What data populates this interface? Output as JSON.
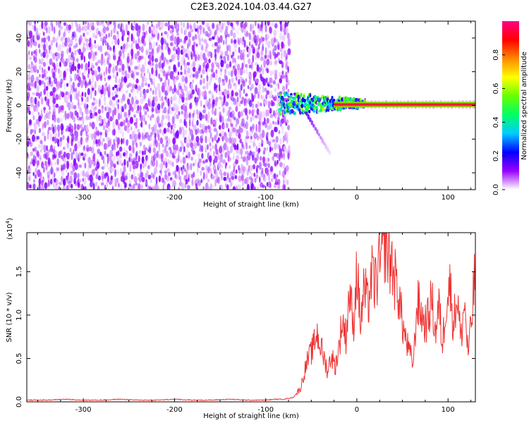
{
  "title": "C2E3.2024.104.03.44.G27",
  "chart_data": [
    {
      "type": "heatmap",
      "xlabel": "Height of straight line (km)",
      "ylabel": "Frequency (Hz)",
      "xlim": [
        -362,
        130
      ],
      "ylim": [
        -50,
        50
      ],
      "xticks": [
        -300,
        -200,
        -100,
        0,
        100
      ],
      "yticks": [
        -40,
        -20,
        0,
        20,
        40
      ],
      "colorbar": {
        "label": "Normalized spectral amplitude",
        "range": [
          0,
          1
        ],
        "ticks": [
          "0.0",
          "0.2",
          "0.4",
          "0.6",
          "0.8"
        ],
        "colors": [
          "#ffffff",
          "#9900ff",
          "#0000ff",
          "#00ccff",
          "#00ff66",
          "#66ff00",
          "#ffff00",
          "#ff8800",
          "#ff0000",
          "#ff0088"
        ]
      },
      "regions": [
        {
          "x_range": [
            -362,
            -75
          ],
          "freq_range": [
            -50,
            50
          ],
          "amplitude": 0.08,
          "pattern": "noise"
        },
        {
          "x_range": [
            -85,
            10
          ],
          "freq_center": 1,
          "amplitude": 0.45,
          "pattern": "scattered signal"
        },
        {
          "x_range": [
            -55,
            -30
          ],
          "freq_range": [
            -28,
            -5
          ],
          "amplitude": 0.1,
          "pattern": "descending tail"
        },
        {
          "x_range": [
            -25,
            130
          ],
          "freq_center": 0.5,
          "amplitude": 1.0,
          "pattern": "carrier line"
        }
      ]
    },
    {
      "type": "line",
      "xlabel": "Height of straight line (km)",
      "ylabel": "SNR (10 * v/v)",
      "y_multiplier_label": "(x10",
      "y_multiplier_exp": "4",
      "y_multiplier_close": ")",
      "xlim": [
        -362,
        130
      ],
      "ylim": [
        0,
        1.95
      ],
      "xticks": [
        -300,
        -200,
        -100,
        0,
        100
      ],
      "yticks": [
        "0.0",
        "0.5",
        "1.0",
        "1.5"
      ],
      "color": "#ee3333",
      "series": [
        {
          "x": [
            -362,
            -340,
            -320,
            -300,
            -280,
            -260,
            -240,
            -220,
            -200,
            -180,
            -160,
            -140,
            -120,
            -100,
            -90,
            -80,
            -70,
            -62,
            -55,
            -48,
            -44,
            -40,
            -36,
            -32,
            -28,
            -24,
            -20,
            -16,
            -12,
            -8,
            -4,
            0,
            4,
            8,
            12,
            16,
            20,
            24,
            28,
            31,
            34,
            38,
            42,
            46,
            50,
            54,
            58,
            62,
            66,
            70,
            74,
            78,
            82,
            86,
            90,
            94,
            98,
            102,
            106,
            110,
            114,
            118,
            122,
            126,
            130
          ],
          "y": [
            0.02,
            0.02,
            0.03,
            0.02,
            0.02,
            0.03,
            0.02,
            0.02,
            0.03,
            0.02,
            0.02,
            0.03,
            0.02,
            0.02,
            0.03,
            0.03,
            0.05,
            0.15,
            0.45,
            0.62,
            0.8,
            0.65,
            0.5,
            0.35,
            0.55,
            0.4,
            0.6,
            0.95,
            0.75,
            1.3,
            0.85,
            1.55,
            0.9,
            1.3,
            1.1,
            1.45,
            1.35,
            1.55,
            1.65,
            1.9,
            1.7,
            1.6,
            1.4,
            1.25,
            0.9,
            0.7,
            0.55,
            0.45,
            1.15,
            1.05,
            0.9,
            0.95,
            1.2,
            0.8,
            1.1,
            0.65,
            1.2,
            1.35,
            0.9,
            1.25,
            0.7,
            1.15,
            0.55,
            0.95,
            1.55
          ]
        }
      ]
    }
  ]
}
